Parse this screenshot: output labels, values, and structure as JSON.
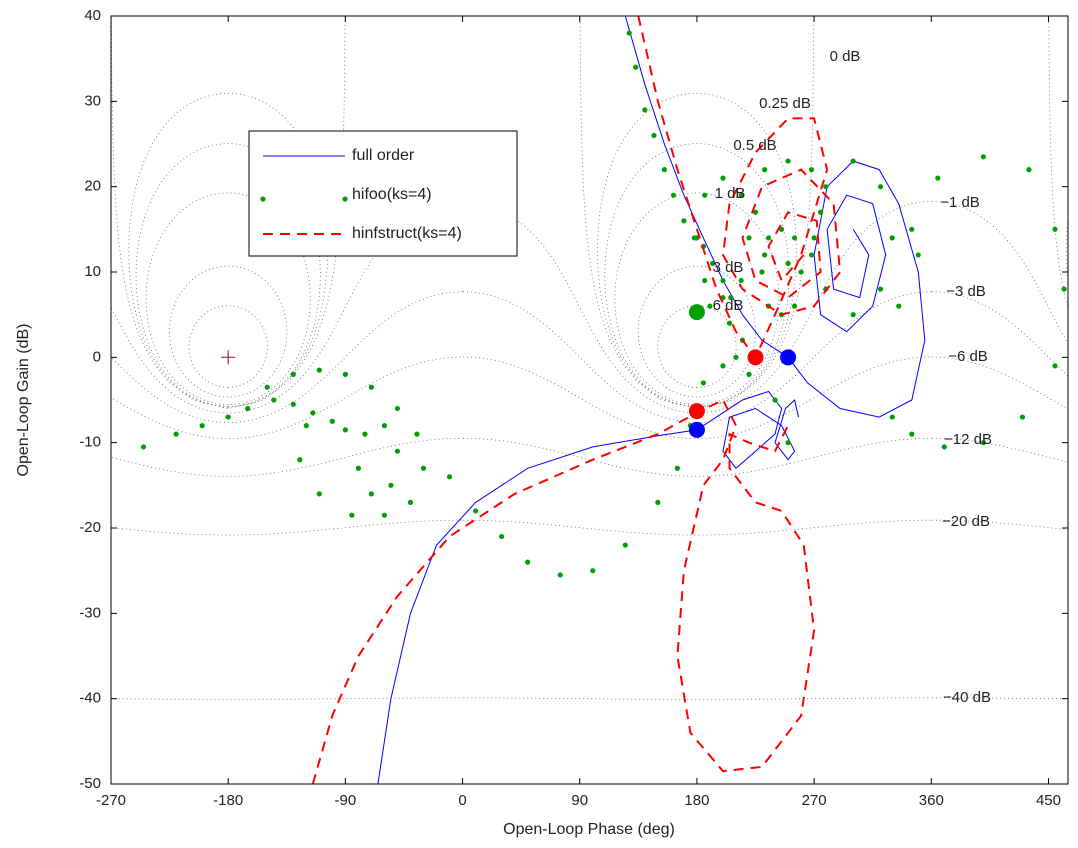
{
  "chart_data": {
    "type": "nichols",
    "xlabel": "Open-Loop Phase (deg)",
    "ylabel": "Open-Loop Gain (dB)",
    "xlim": [
      -270,
      465
    ],
    "ylim": [
      -50,
      40
    ],
    "xticks": [
      -270,
      -180,
      -90,
      0,
      90,
      180,
      270,
      360,
      450
    ],
    "yticks": [
      -50,
      -40,
      -30,
      -20,
      -10,
      0,
      10,
      20,
      30,
      40
    ],
    "grid": true,
    "legend": "upper left",
    "grid_contours": [
      {
        "value": 0,
        "label": "0 dB"
      },
      {
        "value": 0.25,
        "label": "0.25 dB"
      },
      {
        "value": 0.5,
        "label": "0.5 dB"
      },
      {
        "value": 1,
        "label": "1 dB"
      },
      {
        "value": 3,
        "label": "3 dB"
      },
      {
        "value": 6,
        "label": "6 dB"
      },
      {
        "value": -1,
        "label": "−1 dB"
      },
      {
        "value": -3,
        "label": "−3 dB"
      },
      {
        "value": -6,
        "label": "−6 dB"
      },
      {
        "value": -12,
        "label": "−12 dB"
      },
      {
        "value": -20,
        "label": "−20 dB"
      },
      {
        "value": -40,
        "label": "−40 dB"
      }
    ],
    "critical_point": [
      -180,
      0
    ],
    "series": [
      {
        "name": "full order",
        "color": "#0000ff",
        "style": "solid",
        "x": [
          125,
          140,
          155,
          170,
          185,
          200,
          215,
          230,
          250,
          265,
          290,
          320,
          345,
          355,
          350,
          335,
          320,
          300,
          280,
          270,
          275,
          295,
          315,
          325,
          315,
          295,
          280,
          285,
          305,
          312,
          300,
          null,
          -65,
          -55,
          -40,
          -20,
          10,
          50,
          100,
          150,
          180,
          195,
          215,
          235,
          245,
          240,
          225,
          210,
          200,
          205,
          225,
          245,
          255,
          250,
          240,
          248,
          255,
          258
        ],
        "values": [
          40,
          32,
          25,
          19,
          14,
          9,
          5,
          2,
          0,
          -3,
          -6,
          -7,
          -5,
          2,
          10,
          18,
          22,
          23,
          20,
          12,
          5,
          3,
          6,
          12,
          18,
          19,
          15,
          8,
          7,
          12,
          15,
          null,
          -50,
          -40,
          -30,
          -22,
          -17,
          -13,
          -10.5,
          -9.2,
          -8.5,
          -7,
          -5,
          -4,
          -6,
          -9,
          -11,
          -13,
          -11,
          -7,
          -6,
          -8,
          -11,
          -12,
          -10,
          -6,
          -5,
          -7
        ]
      },
      {
        "name": "hifoo(ks=4)",
        "color": "#00a000",
        "style": "dots",
        "x": [
          -245,
          -220,
          -200,
          -180,
          -165,
          -150,
          -130,
          -110,
          -90,
          -70,
          -50,
          -35,
          -30,
          -40,
          -60,
          -85,
          -110,
          -125,
          -120,
          -145,
          -130,
          -115,
          -100,
          -90,
          -60,
          -50,
          -55,
          -70,
          -80,
          -75,
          -10,
          10,
          30,
          50,
          75,
          100,
          125,
          150,
          165,
          175,
          185,
          200,
          210,
          215,
          205,
          190,
          220,
          240,
          250,
          128,
          133,
          140,
          147,
          155,
          162,
          170,
          178,
          185,
          192,
          200,
          206,
          220,
          214,
          200,
          186,
          180,
          186,
          200,
          214,
          275,
          268,
          250,
          232,
          225,
          232,
          250,
          268,
          330,
          321,
          300,
          279,
          270,
          279,
          300,
          321,
          260,
          255,
          245,
          235,
          230,
          235,
          245,
          255,
          335,
          330,
          345,
          370,
          400,
          430,
          455,
          462,
          455,
          435,
          400,
          365,
          345,
          350
        ],
        "values": [
          -10.5,
          -9,
          -8,
          -7,
          -6,
          -3.5,
          -2,
          -1.5,
          -2,
          -3.5,
          -6,
          -9,
          -13,
          -17,
          -18.5,
          -18.5,
          -16,
          -12,
          -8,
          -5,
          -5.5,
          -6.5,
          -7.5,
          -8.5,
          -8,
          -11,
          -15,
          -16,
          -13,
          -9,
          -14,
          -18,
          -21,
          -24,
          -25.5,
          -25,
          -22,
          -17,
          -13,
          -8,
          -3,
          -1,
          0,
          2,
          4,
          6,
          -2,
          -5,
          -10,
          38,
          34,
          29,
          26,
          22,
          19,
          16,
          14,
          13,
          11,
          9,
          7,
          14,
          19,
          21,
          19,
          14,
          9,
          7,
          9,
          17,
          22,
          23,
          22,
          17,
          12,
          11,
          12,
          14,
          20,
          23,
          20,
          14,
          8,
          5,
          8,
          10,
          14,
          15,
          14,
          10,
          6,
          5,
          6,
          6,
          -7,
          -9,
          -10.5,
          -10,
          -7,
          -1,
          8,
          15,
          22,
          23.5,
          21,
          15,
          12
        ]
      },
      {
        "name": "hinfstruct(ks=4)",
        "color": "#ff0000",
        "style": "dashed",
        "x": [
          -115,
          -100,
          -80,
          -50,
          -10,
          40,
          100,
          150,
          180,
          200,
          210,
          200,
          185,
          170,
          165,
          175,
          200,
          230,
          260,
          270,
          262,
          245,
          225,
          205,
          205,
          220,
          240,
          250,
          null,
          135,
          150,
          165,
          180,
          195,
          210,
          225,
          240,
          260,
          280,
          270,
          250,
          225,
          205,
          200,
          215,
          245,
          270,
          290,
          285,
          260,
          230,
          215,
          225,
          250,
          275,
          272,
          250,
          235,
          245,
          262
        ],
        "values": [
          -50,
          -42,
          -35,
          -28,
          -21,
          -16,
          -12,
          -9,
          -6.5,
          -5,
          -8,
          -12,
          -15,
          -25,
          -35,
          -44,
          -48.5,
          -48,
          -42,
          -32,
          -22,
          -18,
          -17,
          -13,
          -9,
          -10,
          -11,
          -8,
          null,
          40,
          30,
          22,
          15,
          8,
          3,
          0,
          5,
          12,
          22,
          28,
          28,
          24,
          18,
          12,
          8,
          5,
          6,
          10,
          18,
          22,
          20,
          14,
          9,
          7,
          10,
          16,
          17,
          13,
          9,
          12
        ]
      }
    ],
    "margin_points": {
      "x": [
        180,
        180,
        225,
        250,
        180
      ],
      "y": [
        5.3,
        -6.3,
        0,
        0,
        -8.5
      ],
      "colors": [
        "#00a000",
        "#ff0000",
        "#ff0000",
        "#0000ff",
        "#0000ff"
      ]
    }
  }
}
